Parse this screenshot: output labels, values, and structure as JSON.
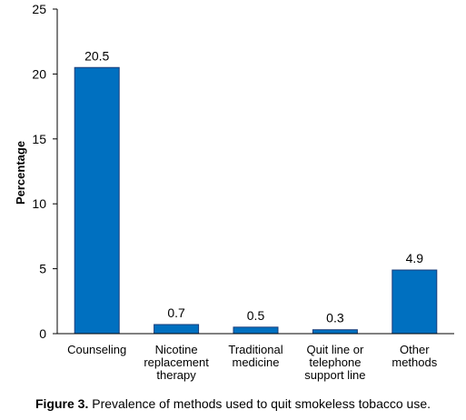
{
  "chart_data": {
    "type": "bar",
    "categories": [
      [
        "Counseling"
      ],
      [
        "Nicotine",
        "replacement",
        "therapy"
      ],
      [
        "Traditional",
        "medicine"
      ],
      [
        "Quit line or",
        "telephone",
        "support line"
      ],
      [
        "Other",
        "methods"
      ]
    ],
    "values": [
      20.5,
      0.7,
      0.5,
      0.3,
      4.9
    ],
    "data_labels": [
      "20.5",
      "0.7",
      "0.5",
      "0.3",
      "4.9"
    ],
    "ylabel": "Percentage",
    "xlabel": "",
    "ylim": [
      0,
      25
    ],
    "yticks": [
      0,
      5,
      10,
      15,
      20,
      25
    ],
    "grid": false,
    "bar_color": "#0070C0",
    "bar_edge_color": "#1a3d7a"
  },
  "caption": {
    "lead": "Figure 3.",
    "text": " Prevalence of methods used to quit smokeless tobacco use."
  }
}
